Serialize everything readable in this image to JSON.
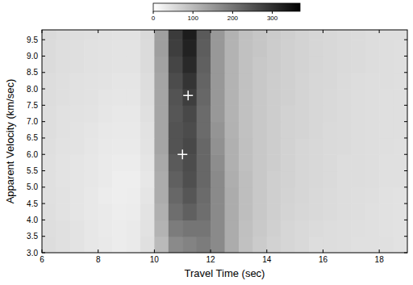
{
  "chart_data": {
    "type": "heatmap",
    "xlabel": "Travel Time (sec)",
    "ylabel": "Apparent Velocity (km/sec)",
    "xlim": [
      6,
      19
    ],
    "ylim": [
      3,
      9.8
    ],
    "xticks": [
      6,
      8,
      10,
      12,
      14,
      16,
      18
    ],
    "yticks": [
      {
        "value": 3,
        "label": "3.0"
      },
      {
        "value": 3.5,
        "label": "3.5"
      },
      {
        "value": 4,
        "label": "4.0"
      },
      {
        "value": 4.5,
        "label": "4.5"
      },
      {
        "value": 5,
        "label": "5.0"
      },
      {
        "value": 5.5,
        "label": "5.5"
      },
      {
        "value": 6,
        "label": "6.0"
      },
      {
        "value": 6.5,
        "label": "6.5"
      },
      {
        "value": 7,
        "label": "7.0"
      },
      {
        "value": 7.5,
        "label": "7.5"
      },
      {
        "value": 8,
        "label": "8.0"
      },
      {
        "value": 8.5,
        "label": "8.5"
      },
      {
        "value": 9,
        "label": "9.0"
      },
      {
        "value": 9.5,
        "label": "9.5"
      }
    ],
    "x_edges": [
      6,
      6.5,
      7,
      7.5,
      8,
      8.5,
      9,
      9.5,
      10,
      10.5,
      11,
      11.5,
      12,
      12.5,
      13,
      13.5,
      14,
      14.5,
      15,
      15.5,
      16,
      16.5,
      17,
      17.5,
      18,
      18.5,
      19
    ],
    "y_edges": [
      3,
      3.5,
      4,
      4.5,
      5,
      5.5,
      6,
      6.5,
      7,
      7.5,
      8,
      8.5,
      9,
      9.5,
      9.8
    ],
    "values": [
      [
        50,
        45,
        40,
        35,
        32,
        28,
        30,
        45,
        100,
        170,
        180,
        190,
        170,
        120,
        90,
        75,
        65,
        60,
        55,
        50,
        50,
        48,
        45,
        45,
        45,
        42
      ],
      [
        48,
        45,
        40,
        35,
        30,
        28,
        30,
        42,
        110,
        190,
        200,
        200,
        170,
        120,
        92,
        78,
        68,
        60,
        55,
        52,
        50,
        48,
        46,
        45,
        44,
        42
      ],
      [
        46,
        42,
        38,
        34,
        30,
        26,
        28,
        40,
        115,
        210,
        230,
        210,
        170,
        120,
        95,
        80,
        70,
        62,
        58,
        55,
        52,
        50,
        48,
        45,
        44,
        42
      ],
      [
        45,
        42,
        38,
        34,
        28,
        25,
        26,
        38,
        120,
        220,
        245,
        215,
        170,
        120,
        95,
        80,
        70,
        64,
        60,
        55,
        52,
        50,
        48,
        46,
        44,
        42
      ],
      [
        45,
        40,
        38,
        35,
        30,
        25,
        25,
        35,
        120,
        230,
        255,
        220,
        170,
        118,
        95,
        80,
        70,
        65,
        60,
        56,
        54,
        50,
        50,
        48,
        45,
        45
      ],
      [
        45,
        40,
        38,
        35,
        30,
        28,
        28,
        38,
        125,
        240,
        260,
        220,
        165,
        115,
        92,
        80,
        72,
        65,
        60,
        56,
        54,
        50,
        50,
        48,
        45,
        45
      ],
      [
        46,
        42,
        40,
        36,
        32,
        30,
        30,
        40,
        130,
        250,
        265,
        220,
        160,
        115,
        92,
        80,
        72,
        66,
        60,
        56,
        54,
        52,
        50,
        48,
        46,
        45
      ],
      [
        48,
        44,
        40,
        38,
        34,
        32,
        32,
        42,
        130,
        250,
        260,
        215,
        155,
        112,
        90,
        80,
        72,
        66,
        62,
        58,
        54,
        52,
        50,
        48,
        46,
        46
      ],
      [
        48,
        44,
        42,
        40,
        36,
        34,
        34,
        45,
        130,
        245,
        265,
        215,
        150,
        110,
        90,
        80,
        72,
        66,
        62,
        58,
        55,
        52,
        50,
        48,
        46,
        46
      ],
      [
        50,
        46,
        44,
        42,
        38,
        36,
        36,
        48,
        130,
        250,
        280,
        220,
        150,
        110,
        90,
        80,
        72,
        68,
        62,
        58,
        55,
        52,
        50,
        48,
        46,
        46
      ],
      [
        50,
        46,
        44,
        42,
        40,
        38,
        38,
        50,
        130,
        260,
        295,
        225,
        150,
        110,
        90,
        80,
        72,
        68,
        62,
        58,
        56,
        52,
        50,
        48,
        48,
        46
      ],
      [
        52,
        48,
        46,
        44,
        42,
        40,
        40,
        52,
        135,
        270,
        310,
        230,
        150,
        110,
        90,
        80,
        74,
        68,
        64,
        60,
        56,
        54,
        52,
        50,
        48,
        46
      ],
      [
        52,
        48,
        46,
        44,
        42,
        40,
        40,
        52,
        140,
        280,
        320,
        235,
        150,
        110,
        90,
        82,
        74,
        68,
        64,
        60,
        56,
        54,
        52,
        50,
        48,
        46
      ],
      [
        54,
        50,
        48,
        46,
        44,
        42,
        42,
        55,
        140,
        285,
        330,
        240,
        150,
        112,
        92,
        82,
        76,
        70,
        64,
        60,
        56,
        54,
        52,
        50,
        48,
        48
      ]
    ],
    "clim": [
      0,
      370
    ],
    "cticks": [
      0,
      100,
      200,
      300
    ],
    "points": {
      "x": [
        11.2,
        11.0
      ],
      "y": [
        7.8,
        6.0
      ],
      "marker": "plus",
      "color": "#ffffff"
    }
  }
}
